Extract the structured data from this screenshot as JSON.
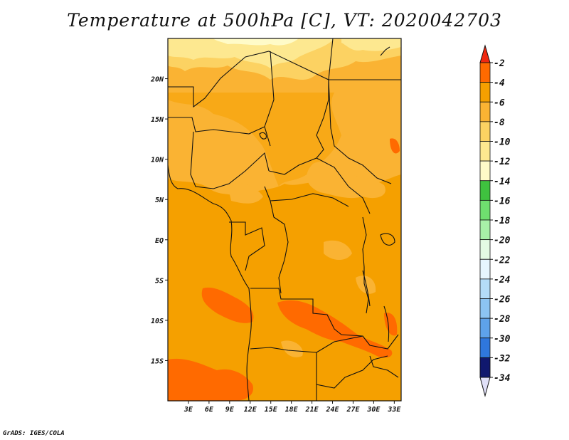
{
  "title": "Temperature at 500hPa [C], VT: 2020042703",
  "footer": "GrADS: IGES/COLA",
  "map": {
    "lon_range": [
      0,
      34
    ],
    "lat_range": [
      -20,
      25
    ],
    "lat_ticks": [
      {
        "value": 20,
        "label": "20N"
      },
      {
        "value": 15,
        "label": "15N"
      },
      {
        "value": 10,
        "label": "10N"
      },
      {
        "value": 5,
        "label": "5N"
      },
      {
        "value": 0,
        "label": "EQ"
      },
      {
        "value": -5,
        "label": "5S"
      },
      {
        "value": -10,
        "label": "10S"
      },
      {
        "value": -15,
        "label": "15S"
      }
    ],
    "lon_ticks": [
      {
        "value": 3,
        "label": "3E"
      },
      {
        "value": 6,
        "label": "6E"
      },
      {
        "value": 9,
        "label": "9E"
      },
      {
        "value": 12,
        "label": "12E"
      },
      {
        "value": 15,
        "label": "15E"
      },
      {
        "value": 18,
        "label": "18E"
      },
      {
        "value": 21,
        "label": "21E"
      },
      {
        "value": 24,
        "label": "24E"
      },
      {
        "value": 27,
        "label": "27E"
      },
      {
        "value": 30,
        "label": "30E"
      },
      {
        "value": 33,
        "label": "33E"
      }
    ]
  },
  "colorbar": {
    "levels": [
      {
        "label": "-2",
        "color": "#ff6a00"
      },
      {
        "label": "-4",
        "color": "#f5a000"
      },
      {
        "label": "-6",
        "color": "#fab333"
      },
      {
        "label": "-8",
        "color": "#fcd262"
      },
      {
        "label": "-10",
        "color": "#fde890"
      },
      {
        "label": "-12",
        "color": "#fffbc8"
      },
      {
        "label": "-14",
        "color": "#3fc23f"
      },
      {
        "label": "-16",
        "color": "#6fdf6f"
      },
      {
        "label": "-18",
        "color": "#a8f0a8"
      },
      {
        "label": "-20",
        "color": "#e4fbe4"
      },
      {
        "label": "-22",
        "color": "#e6f6ff"
      },
      {
        "label": "-24",
        "color": "#b4dcf8"
      },
      {
        "label": "-26",
        "color": "#8cc4f2"
      },
      {
        "label": "-28",
        "color": "#5ea2ea"
      },
      {
        "label": "-30",
        "color": "#2f77dc"
      },
      {
        "label": "-32",
        "color": "#1a55bd"
      },
      {
        "label": "-34",
        "color": "#1b3e9c"
      }
    ],
    "top_arrow_color": "#f02810",
    "bottom_arrow_color": "#e0e0f8",
    "bottom_band_color": "#10186e"
  }
}
